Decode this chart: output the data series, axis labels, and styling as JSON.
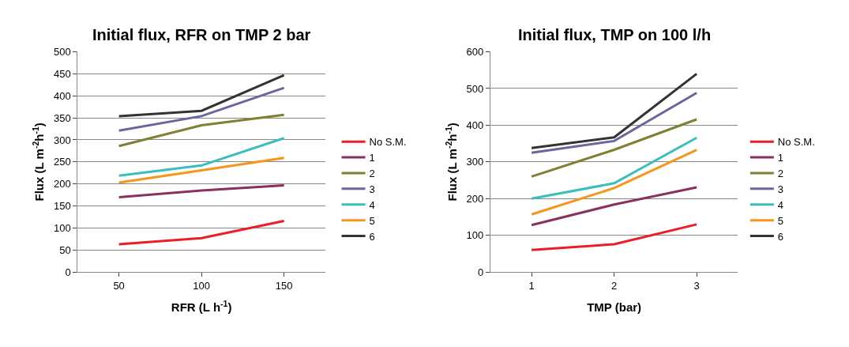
{
  "chart_data": [
    {
      "type": "line",
      "title": "Initial flux, RFR on TMP 2 bar",
      "xlabel": "RFR (L h$^{-1}$)",
      "ylabel": "Flux (L m$^{-2}$h$^{-1}$)",
      "categories": [
        "50",
        "100",
        "150"
      ],
      "ylim": [
        0,
        500
      ],
      "yticks": [
        0,
        50,
        100,
        150,
        200,
        250,
        300,
        350,
        400,
        450,
        500
      ],
      "grid": "y",
      "legend": "right",
      "series": [
        {
          "name": "No S.M.",
          "color": "#ee1c25",
          "values": [
            63,
            77,
            116
          ]
        },
        {
          "name": "1",
          "color": "#8b2f5e",
          "values": [
            170,
            185,
            197
          ]
        },
        {
          "name": "2",
          "color": "#7f8033",
          "values": [
            286,
            333,
            357
          ]
        },
        {
          "name": "3",
          "color": "#6a679e",
          "values": [
            321,
            354,
            418
          ]
        },
        {
          "name": "4",
          "color": "#3cbdbd",
          "values": [
            219,
            242,
            304
          ]
        },
        {
          "name": "5",
          "color": "#f7941d",
          "values": [
            203,
            231,
            259
          ]
        },
        {
          "name": "6",
          "color": "#333333",
          "values": [
            354,
            366,
            447
          ]
        }
      ]
    },
    {
      "type": "line",
      "title": "Initial flux, TMP on 100 l/h",
      "xlabel": "TMP (bar)",
      "ylabel": "Flux (L m$^{-2}$h$^{-1}$)",
      "categories": [
        "1",
        "2",
        "3"
      ],
      "ylim": [
        0,
        600
      ],
      "yticks": [
        0,
        100,
        200,
        300,
        400,
        500,
        600
      ],
      "grid": "y",
      "legend": "right",
      "series": [
        {
          "name": "No S.M.",
          "color": "#ee1c25",
          "values": [
            60,
            76,
            130
          ]
        },
        {
          "name": "1",
          "color": "#8b2f5e",
          "values": [
            128,
            184,
            231
          ]
        },
        {
          "name": "2",
          "color": "#7f8033",
          "values": [
            260,
            333,
            416
          ]
        },
        {
          "name": "3",
          "color": "#6a679e",
          "values": [
            325,
            357,
            488
          ]
        },
        {
          "name": "4",
          "color": "#3cbdbd",
          "values": [
            200,
            242,
            366
          ]
        },
        {
          "name": "5",
          "color": "#f7941d",
          "values": [
            157,
            229,
            333
          ]
        },
        {
          "name": "6",
          "color": "#333333",
          "values": [
            338,
            367,
            540
          ]
        }
      ]
    }
  ]
}
